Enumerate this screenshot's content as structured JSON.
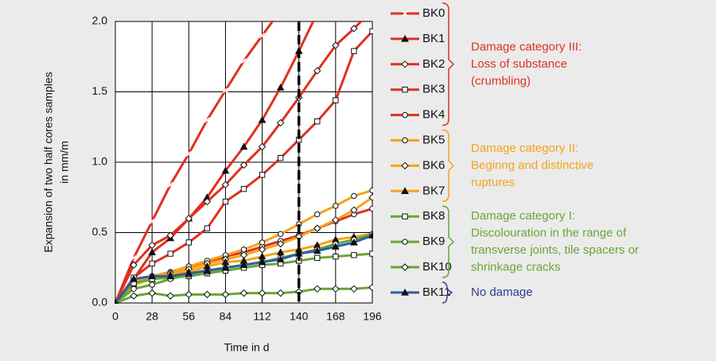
{
  "chart_data": {
    "type": "line",
    "ylabel": [
      "Expansion of two half cores samples",
      "in mm/m"
    ],
    "xlabel": "Time in d",
    "x": [
      0,
      14,
      28,
      42,
      56,
      70,
      84,
      98,
      112,
      126,
      140,
      154,
      168,
      182,
      196
    ],
    "xlim": [
      0,
      196
    ],
    "xticks": [
      0,
      28,
      56,
      84,
      112,
      140,
      168,
      196
    ],
    "ylim": [
      0,
      2
    ],
    "yticks": [
      {
        "value": 0,
        "label": "0.0"
      },
      {
        "value": 0.5,
        "label": "0.5"
      },
      {
        "value": 1,
        "label": "1.0"
      },
      {
        "value": 1.5,
        "label": "1.5"
      },
      {
        "value": 2,
        "label": "2.0"
      }
    ],
    "grid": true,
    "vline": 140,
    "series": [
      {
        "name": "BK0",
        "color": "#e0301e",
        "marker": "x",
        "values": [
          0,
          0.32,
          0.58,
          0.84,
          1.06,
          1.3,
          1.51,
          1.72,
          1.9,
          2.08,
          null,
          null,
          null,
          null,
          null
        ]
      },
      {
        "name": "BK1",
        "color": "#e0301e",
        "marker": "triangle",
        "values": [
          0,
          0.17,
          0.36,
          0.46,
          0.6,
          0.75,
          0.94,
          1.11,
          1.3,
          1.53,
          1.79,
          2.06,
          null,
          null,
          null
        ]
      },
      {
        "name": "BK2",
        "color": "#e0301e",
        "marker": "diamond",
        "values": [
          0,
          0.27,
          0.41,
          0.48,
          0.6,
          0.72,
          0.84,
          0.98,
          1.11,
          1.28,
          1.46,
          1.65,
          1.83,
          1.95,
          2.08
        ]
      },
      {
        "name": "BK3",
        "color": "#e0301e",
        "marker": "square",
        "values": [
          0,
          0.18,
          0.28,
          0.35,
          0.43,
          0.53,
          0.72,
          0.81,
          0.91,
          1.03,
          1.16,
          1.29,
          1.44,
          1.79,
          1.93
        ]
      },
      {
        "name": "BK4",
        "color": "#e0301e",
        "marker": "circle",
        "values": [
          0,
          0.15,
          0.19,
          0.22,
          0.26,
          0.29,
          0.33,
          0.36,
          0.4,
          0.44,
          0.48,
          0.53,
          0.58,
          0.63,
          0.67
        ]
      },
      {
        "name": "BK5",
        "color": "#f5a31a",
        "marker": "circle",
        "values": [
          0,
          0.15,
          0.19,
          0.22,
          0.26,
          0.3,
          0.34,
          0.38,
          0.43,
          0.49,
          0.56,
          0.63,
          0.69,
          0.76,
          0.8
        ]
      },
      {
        "name": "BK6",
        "color": "#f5a31a",
        "marker": "diamond",
        "values": [
          0,
          0.13,
          0.18,
          0.21,
          0.24,
          0.28,
          0.31,
          0.34,
          0.38,
          0.42,
          0.47,
          0.53,
          0.59,
          0.66,
          0.75
        ]
      },
      {
        "name": "BK7",
        "color": "#f5a31a",
        "marker": "triangle",
        "values": [
          0,
          0.13,
          0.17,
          0.2,
          0.22,
          0.26,
          0.29,
          0.3,
          0.33,
          0.36,
          0.38,
          0.41,
          0.45,
          0.47,
          0.49
        ]
      },
      {
        "name": "BK8",
        "color": "#6aa536",
        "marker": "square",
        "values": [
          0,
          0.14,
          0.17,
          0.18,
          0.19,
          0.21,
          0.23,
          0.25,
          0.27,
          0.28,
          0.3,
          0.32,
          0.33,
          0.34,
          0.35
        ]
      },
      {
        "name": "BK9",
        "color": "#6aa536",
        "marker": "circle",
        "values": [
          0,
          0.1,
          0.13,
          0.17,
          0.2,
          0.22,
          0.25,
          0.27,
          0.29,
          0.32,
          0.35,
          0.38,
          0.42,
          0.45,
          0.49
        ]
      },
      {
        "name": "BK10",
        "color": "#6aa536",
        "marker": "diamond",
        "values": [
          0,
          0.05,
          0.07,
          0.05,
          0.06,
          0.06,
          0.06,
          0.07,
          0.07,
          0.07,
          0.08,
          0.1,
          0.1,
          0.1,
          0.11
        ]
      },
      {
        "name": "BK11",
        "color": "#2e5f9e",
        "marker": "triangle",
        "values": [
          0,
          0.17,
          0.19,
          0.19,
          0.21,
          0.23,
          0.25,
          0.27,
          0.29,
          0.31,
          0.35,
          0.37,
          0.4,
          0.43,
          0.48
        ]
      }
    ],
    "groups": [
      {
        "lines": [
          "Damage category III:",
          "Loss of substance",
          "(crumbling)"
        ],
        "color": "#e0301e",
        "from": 0,
        "to": 4
      },
      {
        "lines": [
          "Damage category II:",
          "Beginng and distinctive",
          "ruptures"
        ],
        "color": "#f5a31a",
        "from": 5,
        "to": 7
      },
      {
        "lines": [
          "Damage category I:",
          "Discolouration in the range of",
          "transverse joints, tile spacers or",
          "shrinkage cracks"
        ],
        "color": "#6aa536",
        "from": 8,
        "to": 10
      },
      {
        "lines": [
          "No damage"
        ],
        "color": "#2f3d8f",
        "from": 11,
        "to": 11
      }
    ]
  }
}
